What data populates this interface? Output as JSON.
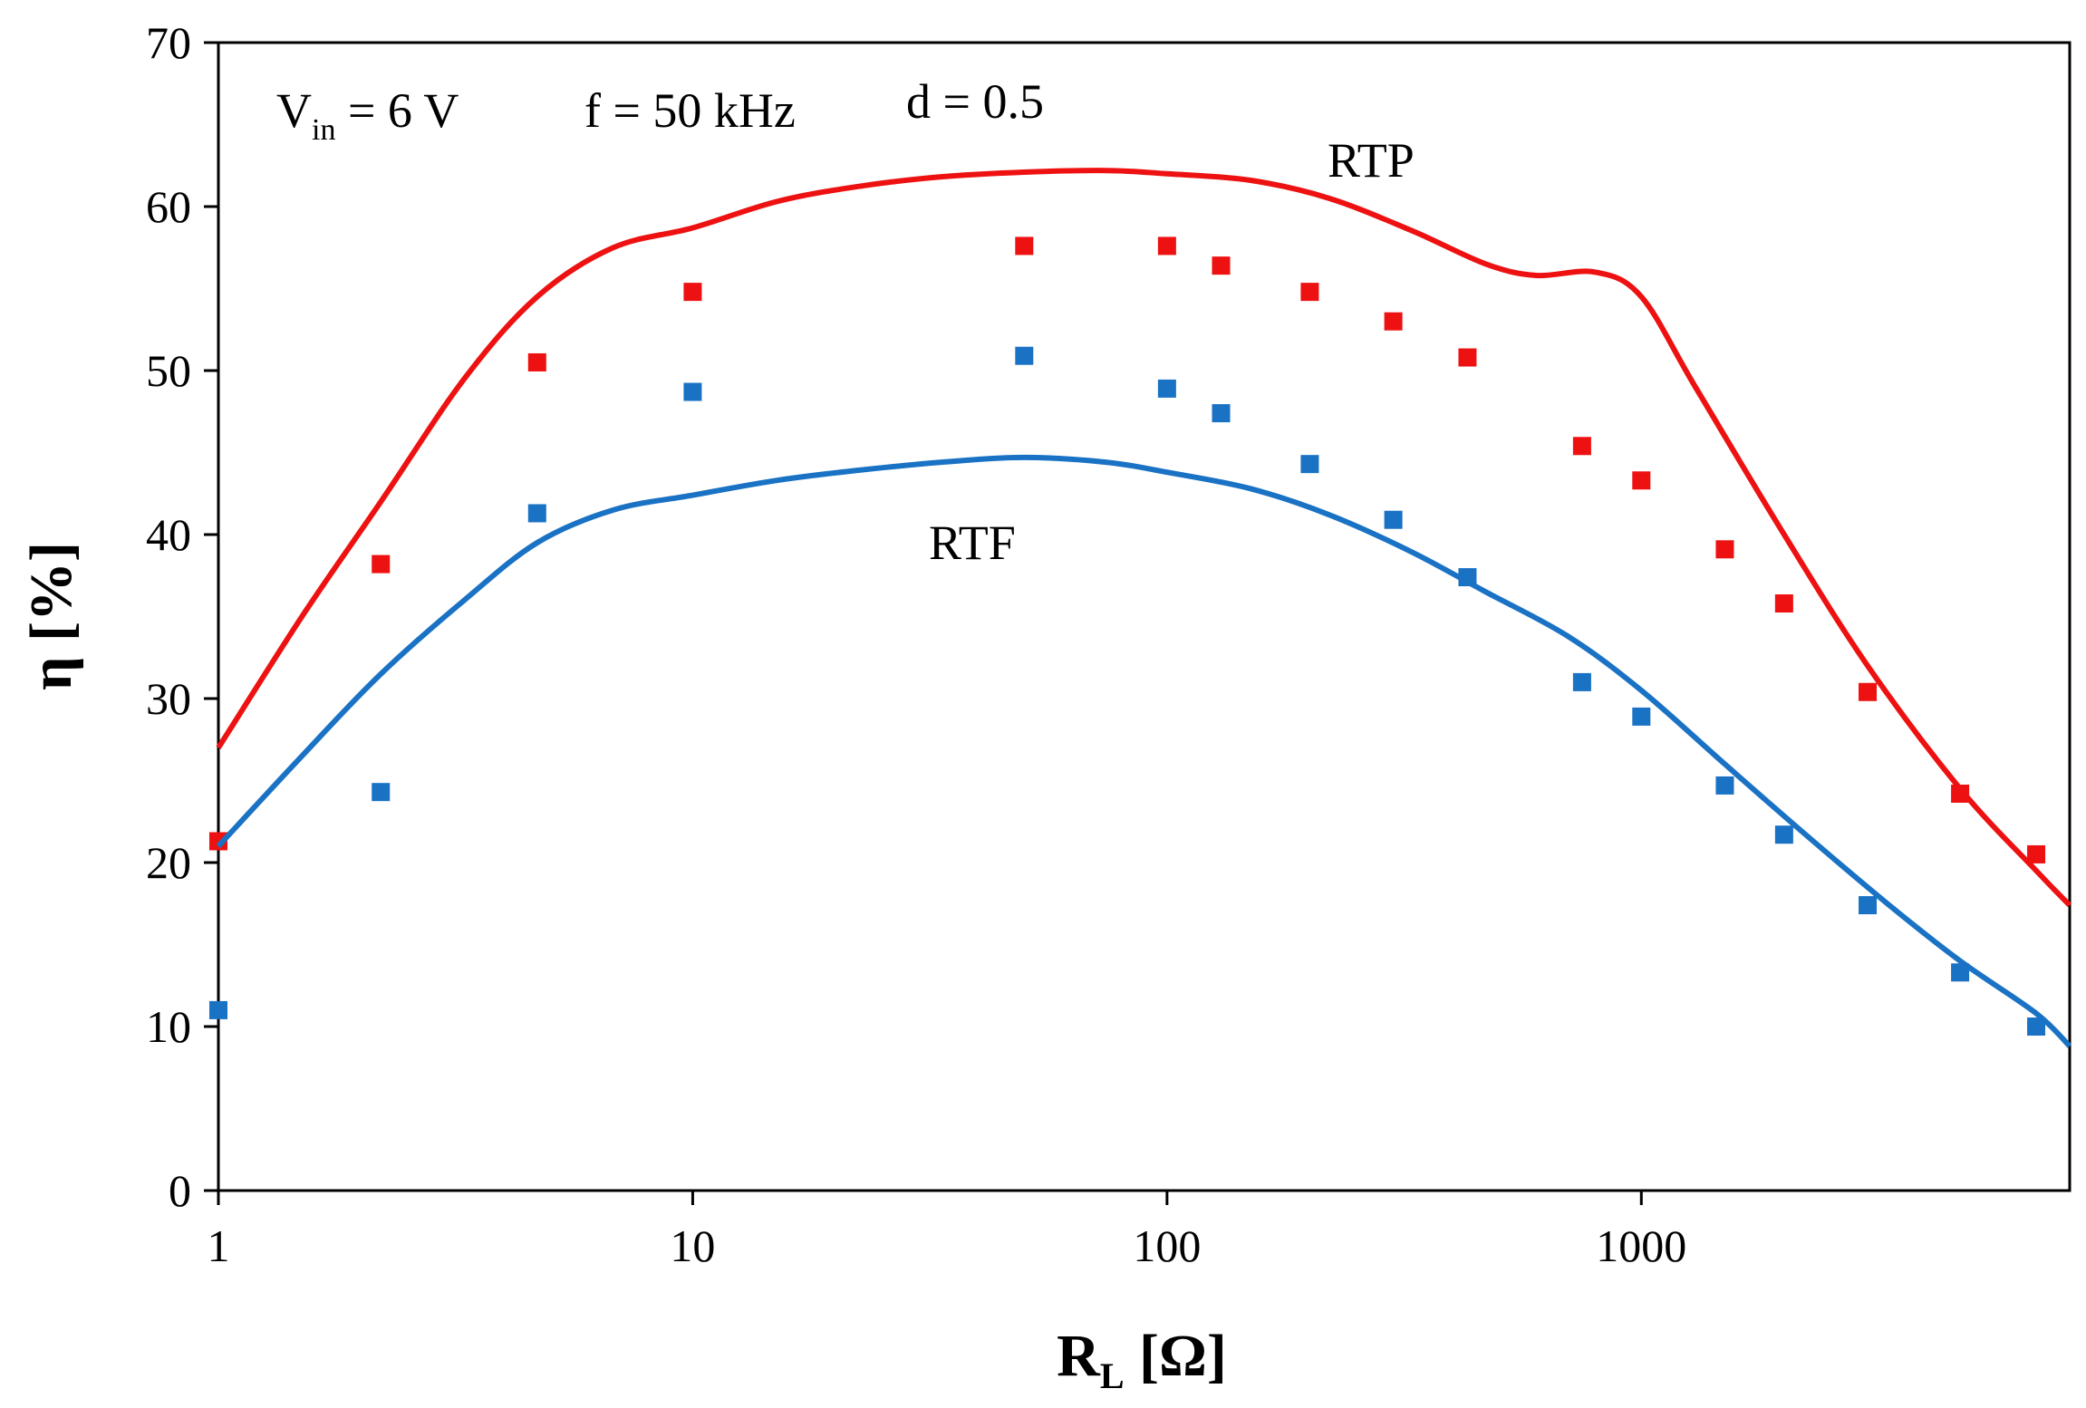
{
  "chart_data": {
    "type": "scatter",
    "xscale": "log",
    "xlim": [
      1,
      8000
    ],
    "ylim": [
      0,
      70
    ],
    "xticks": [
      1,
      10,
      100,
      1000
    ],
    "xtick_labels": [
      "1",
      "10",
      "100",
      "1000"
    ],
    "yticks": [
      0,
      10,
      20,
      30,
      40,
      50,
      60,
      70
    ],
    "ytick_labels": [
      "0",
      "10",
      "20",
      "30",
      "40",
      "50",
      "60",
      "70"
    ],
    "xlabel": {
      "main": "R",
      "sub": "L",
      "rest": " [Ω]"
    },
    "ylabel": "η [%]",
    "grid": false,
    "annotations": {
      "vin": {
        "main": "V",
        "sub": "in",
        "rest": " = 6 V"
      },
      "freq": "f = 50 kHz",
      "duty": "d = 0.5"
    },
    "series": [
      {
        "name": "RTP",
        "color": "#ee1111",
        "measured": {
          "x": [
            1,
            2.2,
            4.7,
            10,
            50,
            100,
            130,
            200,
            300,
            430,
            750,
            1000,
            1500,
            2000,
            3000,
            4700,
            6800
          ],
          "y": [
            21.3,
            38.2,
            50.5,
            54.8,
            57.6,
            57.6,
            56.4,
            54.8,
            53.0,
            50.8,
            45.4,
            43.3,
            39.1,
            35.8,
            30.4,
            24.2,
            20.5
          ]
        },
        "model": {
          "x": [
            1,
            1.5,
            2.2,
            3.3,
            4.7,
            6.8,
            10,
            15,
            22,
            33,
            50,
            75,
            100,
            150,
            220,
            330,
            470,
            600,
            800,
            1000,
            1300,
            2000,
            3000,
            4700,
            6800,
            8000
          ],
          "y": [
            27.0,
            35.0,
            42.0,
            49.5,
            54.5,
            57.5,
            58.7,
            60.3,
            61.2,
            61.8,
            62.1,
            62.2,
            62.0,
            61.6,
            60.5,
            58.5,
            56.5,
            55.8,
            56.0,
            54.5,
            49.0,
            40.0,
            32.0,
            24.5,
            19.5,
            17.4
          ]
        }
      },
      {
        "name": "RTF",
        "color": "#1a72c4",
        "measured": {
          "x": [
            1,
            2.2,
            4.7,
            10,
            50,
            100,
            130,
            200,
            300,
            430,
            750,
            1000,
            1500,
            2000,
            3000,
            4700,
            6800
          ],
          "y": [
            11.0,
            24.3,
            41.3,
            48.7,
            50.9,
            48.9,
            47.4,
            44.3,
            40.9,
            37.4,
            31.0,
            28.9,
            24.7,
            21.7,
            17.4,
            13.3,
            10.0
          ]
        },
        "model": {
          "x": [
            1,
            1.5,
            2.2,
            3.3,
            4.7,
            6.8,
            10,
            15,
            22,
            33,
            50,
            75,
            100,
            150,
            220,
            330,
            470,
            700,
            1000,
            1500,
            2200,
            3300,
            4700,
            6800,
            8000
          ],
          "y": [
            21.0,
            26.5,
            31.5,
            36.0,
            39.5,
            41.5,
            42.4,
            43.3,
            43.9,
            44.4,
            44.7,
            44.4,
            43.8,
            42.8,
            41.2,
            38.9,
            36.5,
            33.8,
            30.5,
            26.0,
            21.8,
            17.5,
            14.0,
            10.8,
            8.8
          ]
        }
      }
    ]
  }
}
